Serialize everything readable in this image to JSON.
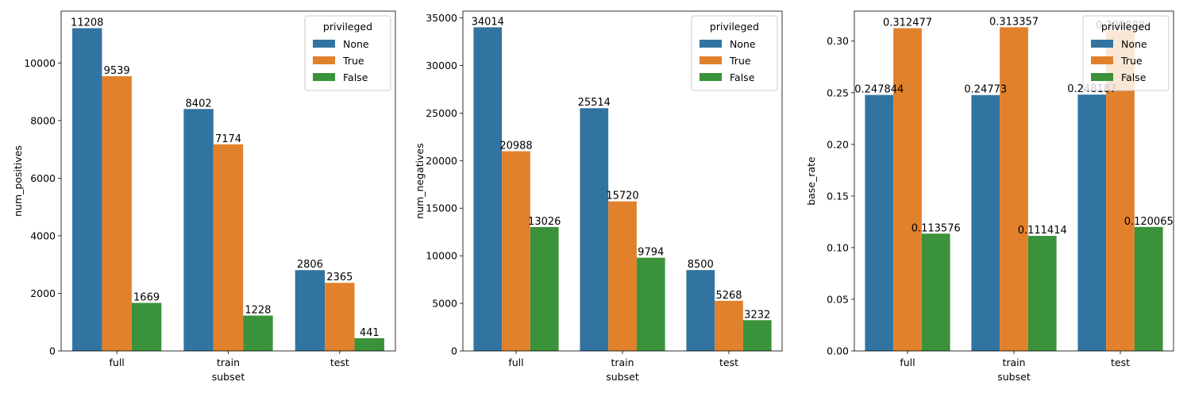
{
  "chart_data": [
    {
      "type": "bar",
      "categories": [
        "full",
        "train",
        "test"
      ],
      "xlabel": "subset",
      "ylabel": "num_positives",
      "ylim": [
        0,
        11800
      ],
      "yticks": [
        0,
        2000,
        4000,
        6000,
        8000,
        10000
      ],
      "ytick_labels": [
        "0",
        "2000",
        "4000",
        "6000",
        "8000",
        "10000"
      ],
      "legend": {
        "title": "privileged",
        "placement": "upper right"
      },
      "series": [
        {
          "name": "None",
          "color": "#3274a1",
          "values": [
            11208,
            8402,
            2806
          ],
          "labels": [
            "11208",
            "8402",
            "2806"
          ]
        },
        {
          "name": "True",
          "color": "#e1812c",
          "values": [
            9539,
            7174,
            2365
          ],
          "labels": [
            "9539",
            "7174",
            "2365"
          ]
        },
        {
          "name": "False",
          "color": "#3a923a",
          "values": [
            1669,
            1228,
            441
          ],
          "labels": [
            "1669",
            "1228",
            "441"
          ]
        }
      ]
    },
    {
      "type": "bar",
      "categories": [
        "full",
        "train",
        "test"
      ],
      "xlabel": "subset",
      "ylabel": "num_negatives",
      "ylim": [
        0,
        35714
      ],
      "yticks": [
        0,
        5000,
        10000,
        15000,
        20000,
        25000,
        30000,
        35000
      ],
      "ytick_labels": [
        "0",
        "5000",
        "10000",
        "15000",
        "20000",
        "25000",
        "30000",
        "35000"
      ],
      "legend": {
        "title": "privileged",
        "placement": "upper right"
      },
      "series": [
        {
          "name": "None",
          "color": "#3274a1",
          "values": [
            34014,
            25514,
            8500
          ],
          "labels": [
            "34014",
            "25514",
            "8500"
          ]
        },
        {
          "name": "True",
          "color": "#e1812c",
          "values": [
            20988,
            15720,
            5268
          ],
          "labels": [
            "20988",
            "15720",
            "5268"
          ]
        },
        {
          "name": "False",
          "color": "#3a923a",
          "values": [
            13026,
            9794,
            3232
          ],
          "labels": [
            "13026",
            "9794",
            "3232"
          ]
        }
      ]
    },
    {
      "type": "bar",
      "categories": [
        "full",
        "train",
        "test"
      ],
      "xlabel": "subset",
      "ylabel": "base_rate",
      "ylim": [
        0,
        0.329
      ],
      "yticks": [
        0,
        0.05,
        0.1,
        0.15,
        0.2,
        0.25,
        0.3
      ],
      "ytick_labels": [
        "0.00",
        "0.05",
        "0.10",
        "0.15",
        "0.20",
        "0.25",
        "0.30"
      ],
      "legend": {
        "title": "privileged",
        "placement": "upper right"
      },
      "series": [
        {
          "name": "None",
          "color": "#3274a1",
          "values": [
            0.247844,
            0.24773,
            0.248187
          ],
          "labels": [
            "0.247844",
            "0.24773",
            "0.248187"
          ]
        },
        {
          "name": "True",
          "color": "#e1812c",
          "values": [
            0.312477,
            0.313357,
            0.309888
          ],
          "labels": [
            "0.312477",
            "0.313357",
            "0.309888"
          ]
        },
        {
          "name": "False",
          "color": "#3a923a",
          "values": [
            0.113576,
            0.111414,
            0.120065
          ],
          "labels": [
            "0.113576",
            "0.111414",
            "0.120065"
          ]
        }
      ]
    }
  ]
}
